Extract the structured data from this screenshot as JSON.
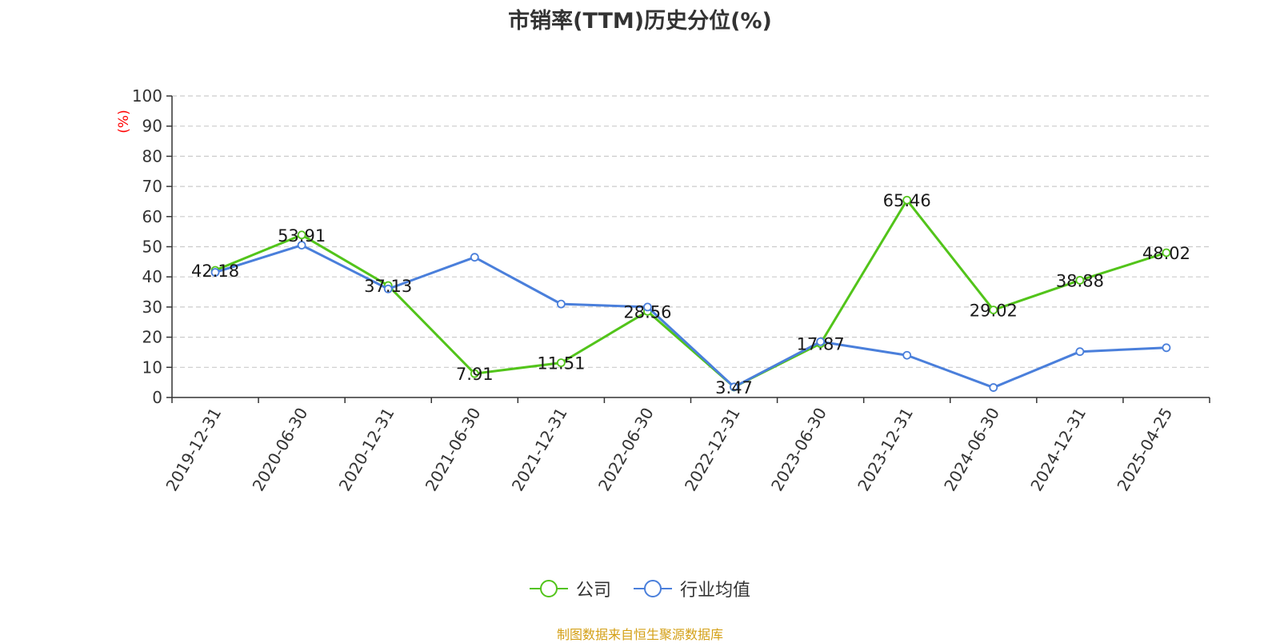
{
  "chart_data": {
    "type": "line",
    "title": "市销率(TTM)历史分位(%)",
    "ylabel": "(%)",
    "categories": [
      "2019-12-31",
      "2020-06-30",
      "2020-12-31",
      "2021-06-30",
      "2021-12-31",
      "2022-06-30",
      "2022-12-31",
      "2023-06-30",
      "2023-12-31",
      "2024-06-30",
      "2024-12-31",
      "2025-04-25"
    ],
    "series": [
      {
        "name": "公司",
        "color": "#52c41a",
        "values": [
          42.18,
          53.91,
          37.13,
          7.91,
          11.51,
          28.56,
          3.47,
          17.87,
          65.46,
          29.02,
          38.88,
          48.02
        ],
        "labels": [
          "42.18",
          "53.91",
          "37.13",
          "7.91",
          "11.51",
          "28.56",
          "3.47",
          "17.87",
          "65.46",
          "29.02",
          "38.88",
          "48.02"
        ]
      },
      {
        "name": "行业均值",
        "color": "#4a7fdb",
        "values": [
          41.5,
          50.5,
          36.0,
          46.5,
          31.0,
          30.0,
          3.5,
          18.5,
          14.0,
          3.3,
          15.2,
          16.5
        ]
      }
    ],
    "ylim": [
      0,
      100
    ],
    "yticks": [
      "0",
      "10",
      "20",
      "30",
      "40",
      "50",
      "60",
      "70",
      "80",
      "90",
      "100"
    ],
    "grid": true,
    "legend_position": "bottom"
  },
  "source_note": "制图数据来自恒生聚源数据库"
}
